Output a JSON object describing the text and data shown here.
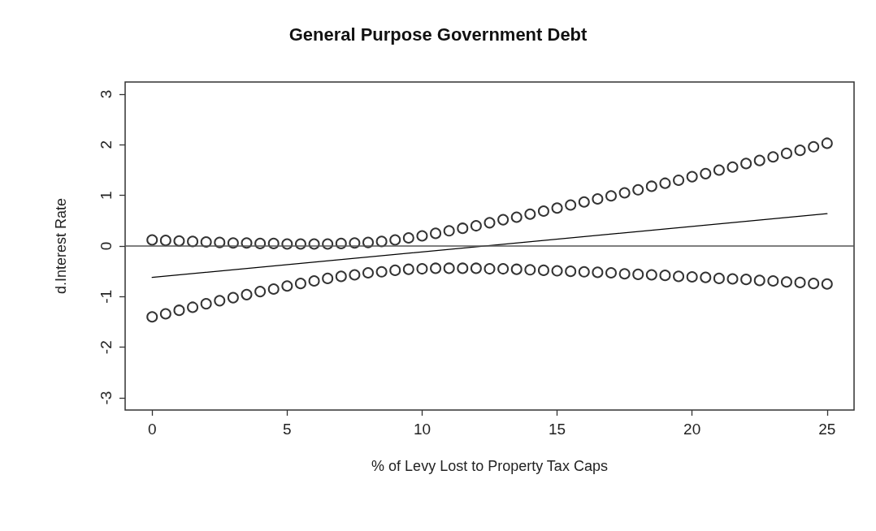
{
  "chart_data": {
    "type": "scatter",
    "title": "General Purpose Government Debt",
    "xlabel": "% of Levy Lost to Property Tax Caps",
    "ylabel": "d.Interest Rate",
    "xlim": [
      -1,
      26
    ],
    "xticks": [
      0,
      5,
      10,
      15,
      20,
      25
    ],
    "ylim": [
      -3.24,
      3.24
    ],
    "yticks": [
      -3,
      -2,
      -1,
      0,
      1,
      2,
      3
    ],
    "grid": false,
    "marker": "circle",
    "x": [
      0,
      0.5,
      1,
      1.5,
      2,
      2.5,
      3,
      3.5,
      4,
      4.5,
      5,
      5.5,
      6,
      6.5,
      7,
      7.5,
      8,
      8.5,
      9,
      9.5,
      10,
      10.5,
      11,
      11.5,
      12,
      12.5,
      13,
      13.5,
      14,
      14.5,
      15,
      15.5,
      16,
      16.5,
      17,
      17.5,
      18,
      18.5,
      19,
      19.5,
      20,
      20.5,
      21,
      21.5,
      22,
      22.5,
      23,
      23.5,
      24,
      24.5,
      25
    ],
    "series": [
      {
        "color": "#000000",
        "values": [
          0.12,
          0.11,
          0.1,
          0.09,
          0.08,
          0.07,
          0.06,
          0.06,
          0.05,
          0.05,
          0.04,
          0.04,
          0.04,
          0.04,
          0.05,
          0.06,
          0.07,
          0.09,
          0.12,
          0.16,
          0.2,
          0.25,
          0.3,
          0.35,
          0.4,
          0.46,
          0.52,
          0.57,
          0.63,
          0.69,
          0.75,
          0.81,
          0.87,
          0.93,
          0.99,
          1.05,
          1.11,
          1.18,
          1.24,
          1.3,
          1.37,
          1.43,
          1.5,
          1.56,
          1.63,
          1.69,
          1.76,
          1.83,
          1.89,
          1.96,
          2.03
        ]
      },
      {
        "color": "#000000",
        "values": [
          -1.4,
          -1.34,
          -1.27,
          -1.21,
          -1.14,
          -1.08,
          -1.02,
          -0.96,
          -0.9,
          -0.85,
          -0.79,
          -0.74,
          -0.69,
          -0.64,
          -0.6,
          -0.57,
          -0.53,
          -0.51,
          -0.48,
          -0.46,
          -0.45,
          -0.44,
          -0.44,
          -0.44,
          -0.44,
          -0.45,
          -0.45,
          -0.46,
          -0.47,
          -0.48,
          -0.49,
          -0.5,
          -0.51,
          -0.52,
          -0.53,
          -0.55,
          -0.56,
          -0.57,
          -0.58,
          -0.6,
          -0.61,
          -0.62,
          -0.64,
          -0.65,
          -0.66,
          -0.68,
          -0.69,
          -0.71,
          -0.72,
          -0.74,
          -0.75
        ]
      },
      {
        "type": "line",
        "color": "#000000",
        "marker": "none",
        "line_style": "solid",
        "x": [
          0,
          25
        ],
        "values": [
          -0.62,
          0.64
        ]
      }
    ],
    "ref_lines": [
      {
        "axis": "y",
        "value": 0,
        "color": "#555555"
      }
    ]
  }
}
